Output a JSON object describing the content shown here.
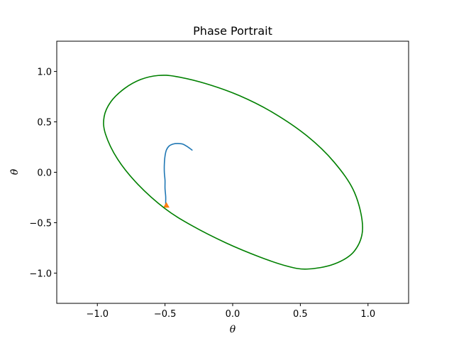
{
  "chart_data": {
    "type": "line",
    "title": "Phase Portrait",
    "xlabel": "θ",
    "ylabel": "θ̇",
    "xlim": [
      -1.3,
      1.3
    ],
    "ylim": [
      -1.3,
      1.3
    ],
    "x_ticks": [
      -1.0,
      -0.5,
      0.0,
      0.5,
      1.0
    ],
    "y_ticks": [
      -1.0,
      -0.5,
      0.0,
      0.5,
      1.0
    ],
    "x_tick_labels": [
      "−1.0",
      "−0.5",
      "0.0",
      "0.5",
      "1.0"
    ],
    "y_tick_labels": [
      "−1.0",
      "−0.5",
      "0.0",
      "0.5",
      "1.0"
    ],
    "grid": false,
    "series": [
      {
        "style": "line",
        "color": "#1f77b4",
        "x": [
          -0.3,
          -0.33,
          -0.37,
          -0.41,
          -0.44,
          -0.47,
          -0.49,
          -0.5,
          -0.505,
          -0.505,
          -0.5,
          -0.5,
          -0.495,
          -0.495,
          -0.495
        ],
        "y": [
          0.22,
          0.25,
          0.28,
          0.285,
          0.28,
          0.26,
          0.22,
          0.16,
          0.08,
          0.0,
          -0.08,
          -0.16,
          -0.24,
          -0.3,
          -0.34
        ]
      },
      {
        "style": "marker",
        "marker": "triangle",
        "color": "#ff7f0e",
        "x": [
          -0.49
        ],
        "y": [
          -0.33
        ]
      },
      {
        "style": "closed-curve",
        "color": "#008000",
        "x": [
          -0.55,
          -0.42,
          -0.2,
          0.05,
          0.3,
          0.55,
          0.75,
          0.9,
          0.96,
          0.9,
          0.75,
          0.55,
          0.4,
          0.2,
          -0.05,
          -0.3,
          -0.5,
          -0.7,
          -0.85,
          -0.94,
          -0.95,
          -0.9,
          -0.8,
          -0.68,
          -0.55
        ],
        "y": [
          0.96,
          0.95,
          0.88,
          0.76,
          0.59,
          0.36,
          0.1,
          -0.2,
          -0.55,
          -0.78,
          -0.91,
          -0.96,
          -0.93,
          -0.84,
          -0.7,
          -0.53,
          -0.36,
          -0.12,
          0.13,
          0.38,
          0.55,
          0.7,
          0.83,
          0.92,
          0.96
        ]
      }
    ]
  }
}
